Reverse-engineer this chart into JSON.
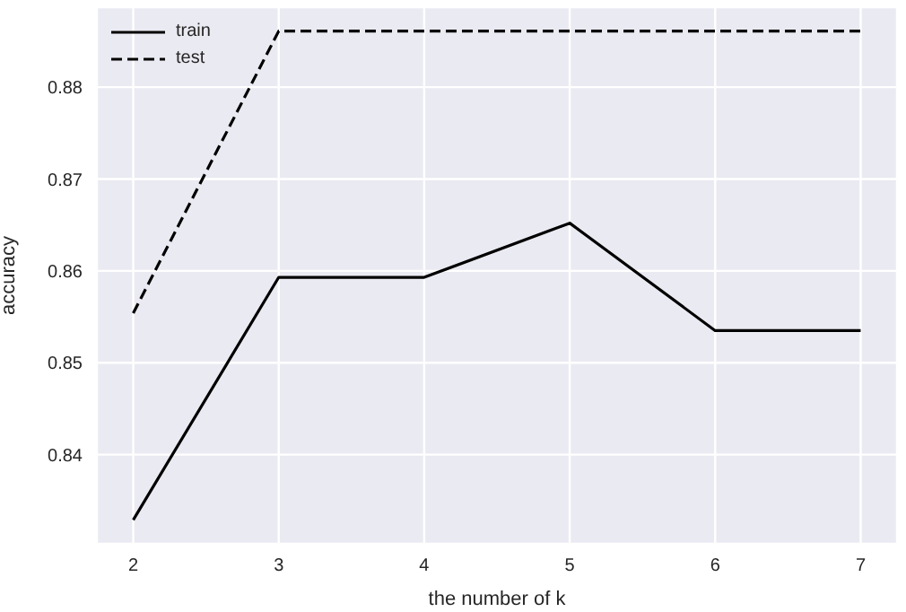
{
  "chart_data": {
    "type": "line",
    "xlabel": "the number of k",
    "ylabel": "accuracy",
    "x": [
      2,
      3,
      4,
      5,
      6,
      7
    ],
    "series": [
      {
        "name": "train",
        "color": "#000000",
        "values": [
          0.8329,
          0.8593,
          0.8593,
          0.8652,
          0.8535,
          0.8535
        ],
        "line_style": "solid"
      },
      {
        "name": "test",
        "color": "#000000",
        "values": [
          0.8554,
          0.8861,
          0.8861,
          0.8861,
          0.8861,
          0.8861
        ],
        "line_style": "dashed"
      }
    ],
    "xlim": [
      1.75,
      7.25
    ],
    "xticks": [
      2,
      3,
      4,
      5,
      6,
      7
    ],
    "ylim": [
      0.8303,
      0.8887
    ],
    "yticks": [
      0.84,
      0.85,
      0.86,
      0.87,
      0.88
    ],
    "grid": true,
    "legend": "top left",
    "marker": "none"
  }
}
